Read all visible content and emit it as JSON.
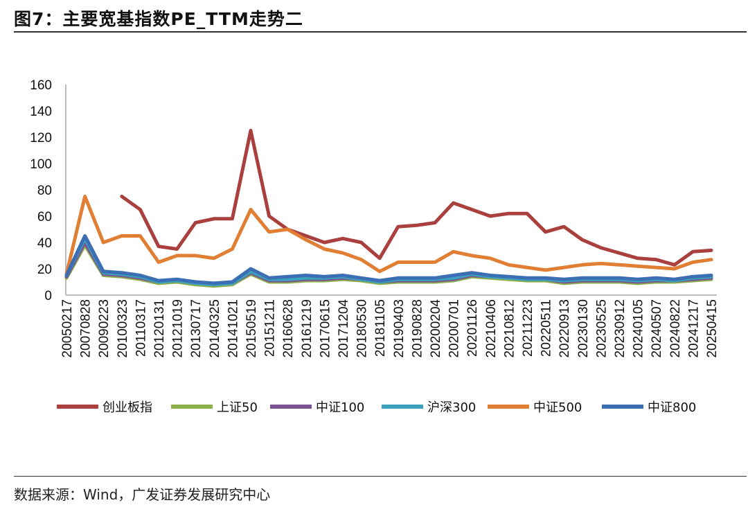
{
  "header": {
    "title": "图7：主要宽基指数PE_TTM走势二"
  },
  "footer": {
    "source": "数据来源：Wind，广发证券发展研究中心"
  },
  "chart_data": {
    "type": "line",
    "title": "",
    "xlabel": "",
    "ylabel": "",
    "ylim": [
      0,
      160
    ],
    "yticks": [
      0,
      20,
      40,
      60,
      80,
      100,
      120,
      140,
      160
    ],
    "grid": false,
    "legend_position": "bottom",
    "x": [
      "20050217",
      "20070828",
      "20090223",
      "20100323",
      "20110317",
      "20120131",
      "20121019",
      "20130717",
      "20140325",
      "20141021",
      "20150519",
      "20151211",
      "20160628",
      "20161219",
      "20170615",
      "20171204",
      "20180530",
      "20181105",
      "20190403",
      "20190828",
      "20200204",
      "20200701",
      "20201126",
      "20210406",
      "20210812",
      "20211223",
      "20220511",
      "20220913",
      "20230130",
      "20230525",
      "20230912",
      "20240105",
      "20240507",
      "20240822",
      "20241217",
      "20250415"
    ],
    "series": [
      {
        "name": "创业板指",
        "color": "#A9403E",
        "values": [
          null,
          null,
          null,
          75,
          65,
          37,
          35,
          55,
          58,
          58,
          125,
          60,
          50,
          45,
          40,
          43,
          40,
          28,
          52,
          53,
          55,
          70,
          65,
          60,
          62,
          62,
          48,
          52,
          42,
          36,
          32,
          28,
          27,
          23,
          33,
          34
        ]
      },
      {
        "name": "上证50",
        "color": "#8DB04A",
        "values": [
          13,
          38,
          15,
          14,
          12,
          9,
          10,
          8,
          7,
          8,
          16,
          10,
          10,
          11,
          11,
          12,
          11,
          9,
          10,
          10,
          10,
          11,
          14,
          13,
          12,
          11,
          11,
          9,
          10,
          10,
          10,
          9,
          10,
          10,
          11,
          12
        ]
      },
      {
        "name": "中证100",
        "color": "#7A5394",
        "values": [
          14,
          40,
          16,
          15,
          13,
          10,
          11,
          9,
          8,
          9,
          17,
          11,
          11,
          12,
          12,
          13,
          12,
          10,
          11,
          11,
          11,
          12,
          15,
          14,
          13,
          12,
          12,
          10,
          11,
          11,
          11,
          10,
          11,
          11,
          12,
          13
        ]
      },
      {
        "name": "沪深300",
        "color": "#3AA2BC",
        "values": [
          15,
          43,
          17,
          16,
          14,
          10,
          11,
          9,
          8,
          9,
          18,
          12,
          12,
          13,
          13,
          14,
          12,
          10,
          12,
          12,
          12,
          13,
          16,
          14,
          13,
          12,
          12,
          11,
          12,
          12,
          12,
          11,
          12,
          11,
          13,
          14
        ]
      },
      {
        "name": "中证500",
        "color": "#E07F33",
        "values": [
          16,
          75,
          40,
          45,
          45,
          25,
          30,
          30,
          28,
          35,
          65,
          48,
          50,
          42,
          35,
          32,
          27,
          18,
          25,
          25,
          25,
          33,
          30,
          28,
          23,
          21,
          19,
          21,
          23,
          24,
          23,
          22,
          21,
          20,
          25,
          27
        ]
      },
      {
        "name": "中证800",
        "color": "#3C6EB4",
        "values": [
          15,
          45,
          18,
          17,
          15,
          11,
          12,
          10,
          9,
          10,
          20,
          13,
          14,
          15,
          14,
          15,
          13,
          11,
          13,
          13,
          13,
          15,
          17,
          15,
          14,
          13,
          13,
          12,
          13,
          13,
          13,
          12,
          13,
          12,
          14,
          15
        ]
      }
    ]
  }
}
